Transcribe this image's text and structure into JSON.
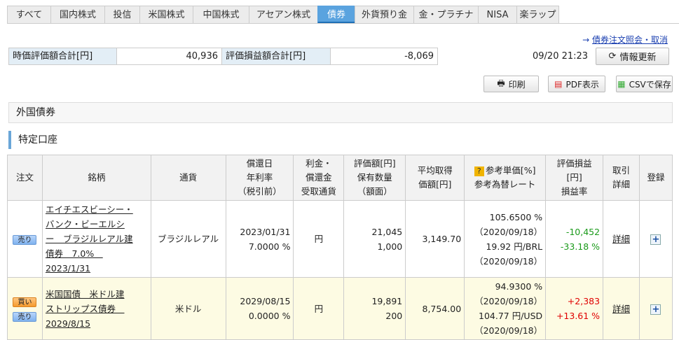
{
  "tabs": [
    "すべて",
    "国内株式",
    "投信",
    "米国株式",
    "中国株式",
    "アセアン株式",
    "債券",
    "外貨預り金",
    "金・プラチナ",
    "NISA",
    "楽ラップ"
  ],
  "active_tab": "債券",
  "order_link": "債券注文照会・取消",
  "summary": {
    "market_value_label": "時価評価額合計[円]",
    "market_value": "40,936",
    "pl_label": "評価損益額合計[円]",
    "pl": "-8,069"
  },
  "timestamp": "09/20 21:23",
  "refresh_label": "情報更新",
  "print_label": "印刷",
  "pdf_label": "PDF表示",
  "csv_label": "CSVで保存",
  "section_title": "外国債券",
  "account_title": "特定口座",
  "headers": {
    "order": "注文",
    "name": "銘柄",
    "currency": "通貨",
    "redemption": [
      "償還日",
      "年利率",
      "（税引前）"
    ],
    "receipt": [
      "利金・",
      "償還金",
      "受取通貨"
    ],
    "valuation": [
      "評価額[円]",
      "保有数量",
      "（額面）"
    ],
    "avg": [
      "平均取得",
      "価額[円]"
    ],
    "ref": [
      "参考単価[%]",
      "参考為替レート"
    ],
    "pl": [
      "評価損益",
      "[円]",
      "損益率"
    ],
    "detail": [
      "取引",
      "詳細"
    ],
    "register": "登録"
  },
  "sell_label": "売り",
  "buy_label": "買い",
  "detail_label": "詳細",
  "rows": [
    {
      "name": [
        "エイチエスビーシー・",
        "バンク・ビーエルシ",
        "ー　ブラジルレアル建",
        "債券　7.0%　",
        "2023/1/31"
      ],
      "currency": "ブラジルレアル",
      "date": "2023/01/31",
      "rate": "7.0000 %",
      "receipt": "円",
      "value": "21,045",
      "qty": "1,000",
      "avg": "3,149.70",
      "ref_price": "105.6500 %",
      "ref_price_date": "（2020/09/18）",
      "fx": "19.92 円/BRL",
      "fx_date": "（2020/09/18）",
      "pl": "-10,452",
      "pl_rate": "-33.18 %",
      "buy": false
    },
    {
      "name": [
        "米国国債　米ドル建",
        "ストリップス債券　",
        "2029/8/15"
      ],
      "currency": "米ドル",
      "date": "2029/08/15",
      "rate": "0.0000 %",
      "receipt": "円",
      "value": "19,891",
      "qty": "200",
      "avg": "8,754.00",
      "ref_price": "94.9300 %",
      "ref_price_date": "（2020/09/18）",
      "fx": "104.77 円/USD",
      "fx_date": "（2020/09/18）",
      "pl": "+2,383",
      "pl_rate": "+13.61 %",
      "buy": true
    }
  ]
}
